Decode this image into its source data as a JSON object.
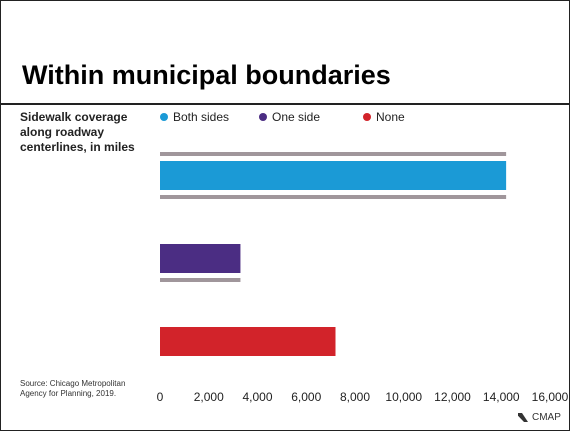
{
  "title": "Within municipal boundaries",
  "chart_data": {
    "type": "bar",
    "orientation": "horizontal",
    "title": "Within municipal boundaries",
    "subtitle": "Sidewalk coverage along roadway centerlines, in miles",
    "categories": [
      "Both sides",
      "One side",
      "None"
    ],
    "values": [
      14200,
      3300,
      7200
    ],
    "reference_values": [
      14200,
      3300,
      null
    ],
    "xlim": [
      0,
      16000
    ],
    "xticks": [
      0,
      2000,
      4000,
      6000,
      8000,
      10000,
      12000,
      14000,
      16000
    ],
    "xtick_labels": [
      "0",
      "2,000",
      "4,000",
      "6,000",
      "8,000",
      "10,000",
      "12,000",
      "14,000",
      "16,000"
    ],
    "legend": [
      {
        "label": "Both sides",
        "color": "#1b9ad6"
      },
      {
        "label": "One side",
        "color": "#4b2d83"
      },
      {
        "label": "None",
        "color": "#d2232a"
      }
    ],
    "colors": [
      "#1b9ad6",
      "#4b2d83",
      "#d2232a"
    ],
    "reference_color": "#a0969b",
    "legend_position": "top",
    "grid": false
  },
  "source": "Source: Chicago Metropolitan Agency for Planning, 2019.",
  "logo_text": "CMAP"
}
